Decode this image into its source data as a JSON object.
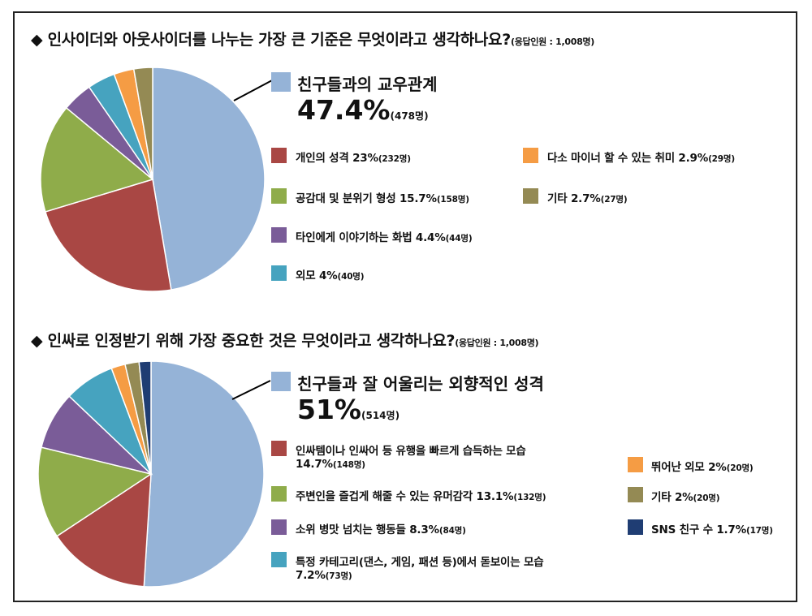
{
  "chart_data": [
    {
      "type": "pie",
      "title": "◆ 인사이더와 아웃사이더를 나누는 가장 큰 기준은 무엇이라고 생각하나요?",
      "note": "(응답인원 : 1,008명)",
      "slices": [
        {
          "label": "친구들과의 교우관계",
          "value": 47.4,
          "pct": "47.4%",
          "count": "(478명)",
          "color": "#95B3D7"
        },
        {
          "label": "개인의 성격",
          "value": 23,
          "pct": "23%",
          "count": "(232명)",
          "color": "#A94744"
        },
        {
          "label": "공감대 및 분위기 형성",
          "value": 15.7,
          "pct": "15.7%",
          "count": "(158명)",
          "color": "#8FAC4A"
        },
        {
          "label": "타인에게 이야기하는 화법",
          "value": 4.4,
          "pct": "4.4%",
          "count": "(44명)",
          "color": "#7A5C98"
        },
        {
          "label": "외모",
          "value": 4,
          "pct": "4%",
          "count": "(40명)",
          "color": "#46A3BF"
        },
        {
          "label": "다소 마이너 할 수 있는 취미",
          "value": 2.9,
          "pct": "2.9%",
          "count": "(29명)",
          "color": "#F59C44"
        },
        {
          "label": "기타",
          "value": 2.7,
          "pct": "2.7%",
          "count": "(27명)",
          "color": "#948A54"
        }
      ]
    },
    {
      "type": "pie",
      "title": "◆ 인싸로 인정받기 위해 가장 중요한 것은 무엇이라고 생각하나요?",
      "note": "(응답인원 : 1,008명)",
      "slices": [
        {
          "label": "친구들과 잘 어울리는 외향적인 성격",
          "value": 51,
          "pct": "51%",
          "count": "(514명)",
          "color": "#95B3D7"
        },
        {
          "label": "인싸템이나 인싸어 등 유행을 빠르게 습득하는 모습",
          "value": 14.7,
          "pct": "14.7%",
          "count": "(148명)",
          "color": "#A94744"
        },
        {
          "label": "주변인을 즐겁게 해줄 수 있는 유머감각",
          "value": 13.1,
          "pct": "13.1%",
          "count": "(132명)",
          "color": "#8FAC4A"
        },
        {
          "label": "소위 병맛 넘치는 행동들",
          "value": 8.3,
          "pct": "8.3%",
          "count": "(84명)",
          "color": "#7A5C98"
        },
        {
          "label": "특정 카테고리(댄스, 게임, 패션 등)에서 돋보이는 모습",
          "value": 7.2,
          "pct": "7.2%",
          "count": "(73명)",
          "color": "#46A3BF"
        },
        {
          "label": "뛰어난 외모",
          "value": 2,
          "pct": "2%",
          "count": "(20명)",
          "color": "#F59C44"
        },
        {
          "label": "기타",
          "value": 2,
          "pct": "2%",
          "count": "(20명)",
          "color": "#948A54"
        },
        {
          "label": "SNS 친구 수",
          "value": 1.7,
          "pct": "1.7%",
          "count": "(17명)",
          "color": "#1F3D73"
        }
      ]
    }
  ]
}
